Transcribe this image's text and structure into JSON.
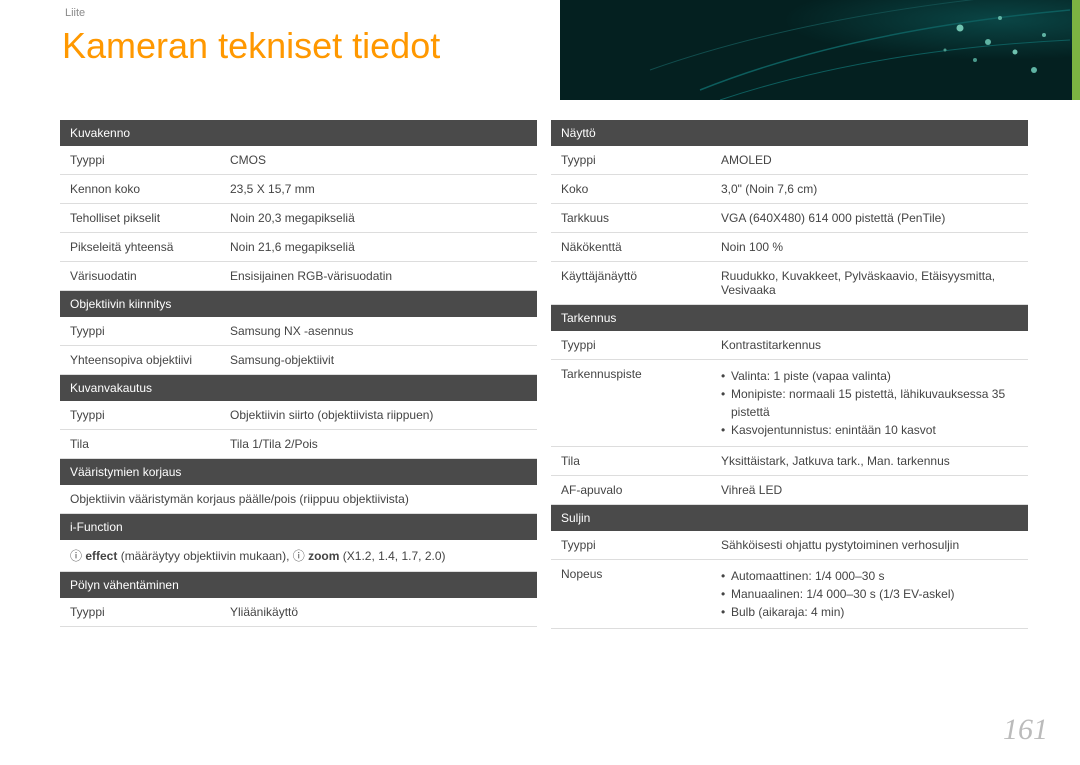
{
  "breadcrumb": "Liite",
  "page_title": "Kameran tekniset tiedot",
  "page_number": "161",
  "colors": {
    "title": "#ff9800",
    "header_bg": "#4a4a4a",
    "accent": "#7cb342",
    "border": "#dddddd",
    "text": "#444444"
  },
  "bg_svg": {
    "base": "#052a2a",
    "swirl": "#0d4d4d",
    "dots": "#5fb3a3"
  },
  "left": [
    {
      "type": "header",
      "text": "Kuvakenno"
    },
    {
      "type": "row",
      "label": "Tyyppi",
      "value": "CMOS"
    },
    {
      "type": "row",
      "label": "Kennon koko",
      "value": "23,5 X 15,7 mm"
    },
    {
      "type": "row",
      "label": "Teholliset pikselit",
      "value": "Noin 20,3 megapikseliä"
    },
    {
      "type": "row",
      "label": "Pikseleitä yhteensä",
      "value": "Noin 21,6 megapikseliä"
    },
    {
      "type": "row",
      "label": "Värisuodatin",
      "value": "Ensisijainen RGB-värisuodatin"
    },
    {
      "type": "header",
      "text": "Objektiivin kiinnitys"
    },
    {
      "type": "row",
      "label": "Tyyppi",
      "value": "Samsung NX -asennus"
    },
    {
      "type": "row",
      "label": "Yhteensopiva objektiivi",
      "value": "Samsung-objektiivit"
    },
    {
      "type": "header",
      "text": "Kuvanvakautus"
    },
    {
      "type": "row",
      "label": "Tyyppi",
      "value": "Objektiivin siirto (objektiivista riippuen)"
    },
    {
      "type": "row",
      "label": "Tila",
      "value": "Tila 1/Tila 2/Pois"
    },
    {
      "type": "header",
      "text": "Vääristymien korjaus"
    },
    {
      "type": "span",
      "value": "Objektiivin vääristymän korjaus päälle/pois (riippuu objektiivista)"
    },
    {
      "type": "header",
      "text": "i-Function"
    },
    {
      "type": "ifunc",
      "eff": "effect",
      "eff_note": " (määräytyy objektiivin mukaan), ",
      "zoom": "zoom",
      "zoom_note": " (X1.2, 1.4, 1.7, 2.0)"
    },
    {
      "type": "header",
      "text": "Pölyn vähentäminen"
    },
    {
      "type": "row",
      "label": "Tyyppi",
      "value": "Yliäänikäyttö"
    }
  ],
  "right": [
    {
      "type": "header",
      "text": "Näyttö"
    },
    {
      "type": "row",
      "label": "Tyyppi",
      "value": "AMOLED"
    },
    {
      "type": "row",
      "label": "Koko",
      "value": "3,0\" (Noin 7,6 cm)"
    },
    {
      "type": "row",
      "label": "Tarkkuus",
      "value": "VGA (640X480) 614 000 pistettä (PenTile)"
    },
    {
      "type": "row",
      "label": "Näkökenttä",
      "value": "Noin 100 %"
    },
    {
      "type": "row",
      "label": "Käyttäjänäyttö",
      "value": "Ruudukko, Kuvakkeet, Pylväskaavio, Etäisyysmitta, Vesivaaka"
    },
    {
      "type": "header",
      "text": "Tarkennus"
    },
    {
      "type": "row",
      "label": "Tyyppi",
      "value": "Kontrastitarkennus"
    },
    {
      "type": "list",
      "label": "Tarkennuspiste",
      "items": [
        "Valinta: 1 piste (vapaa valinta)",
        "Monipiste: normaali 15 pistettä, lähikuvauksessa 35 pistettä",
        "Kasvojentunnistus: enintään 10 kasvot"
      ]
    },
    {
      "type": "row",
      "label": "Tila",
      "value": "Yksittäistark, Jatkuva tark., Man. tarkennus"
    },
    {
      "type": "row",
      "label": "AF-apuvalo",
      "value": "Vihreä LED"
    },
    {
      "type": "header",
      "text": "Suljin"
    },
    {
      "type": "row",
      "label": "Tyyppi",
      "value": "Sähköisesti ohjattu pystytoiminen verhosuljin"
    },
    {
      "type": "list",
      "label": "Nopeus",
      "items": [
        "Automaattinen: 1/4 000–30 s",
        "Manuaalinen: 1/4 000–30 s (1/3 EV-askel)",
        "Bulb (aikaraja: 4 min)"
      ]
    }
  ]
}
